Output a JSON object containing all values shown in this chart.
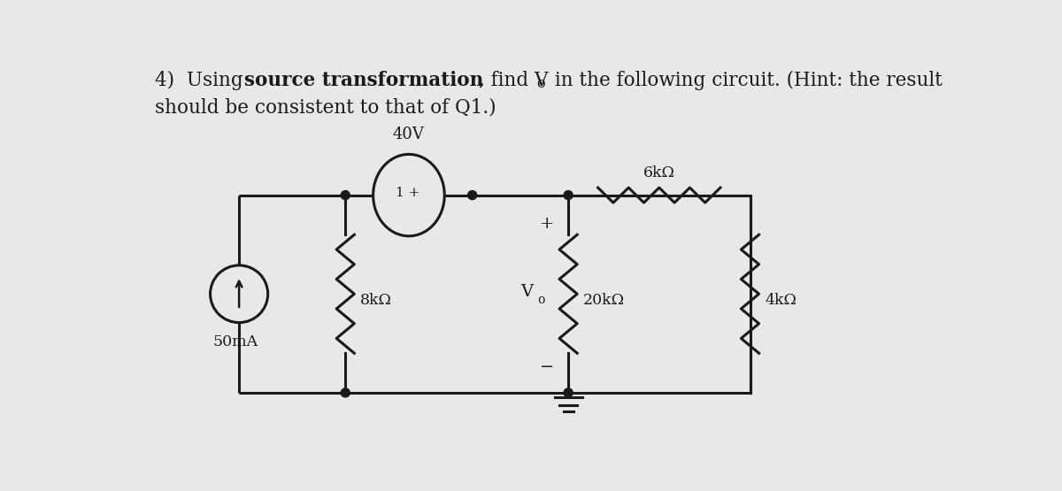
{
  "bg_color": "#e8e8e8",
  "line_color": "#1a1a1a",
  "label_40V": "40V",
  "label_50mA": "50mA",
  "label_8k": "8kΩ",
  "label_6k": "6kΩ",
  "label_20k": "20kΩ",
  "label_4k": "4kΩ",
  "label_Vo": "V",
  "label_Vo_sub": "o",
  "label_plus": "+",
  "label_minus": "−",
  "label_vs_inner": "1 +",
  "title_pre": "4)  Using ",
  "title_bold": "source transformation",
  "title_mid": ", find V",
  "title_sub": "o",
  "title_end": " in the following circuit. (Hint: the result",
  "title_line2": "should be consistent to that of Q1.)"
}
